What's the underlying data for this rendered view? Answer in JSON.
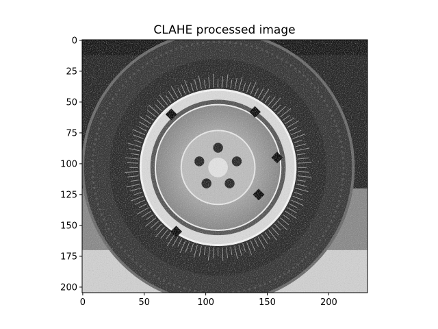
{
  "chart_data": {
    "type": "image",
    "title": "CLAHE processed image",
    "xlabel": "",
    "ylabel": "",
    "image_width": 232,
    "image_height": 205,
    "colormap": "gray",
    "xlim": [
      -0.5,
      231.5
    ],
    "ylim": [
      204.5,
      -0.5
    ],
    "x_ticks": [
      0,
      50,
      100,
      150,
      200
    ],
    "y_ticks": [
      0,
      25,
      50,
      75,
      100,
      125,
      150,
      175,
      200
    ],
    "grid": false,
    "subject": {
      "tire_center": [
        110,
        103
      ],
      "tire_outer_radius": 110,
      "rim_outer_radius": 63,
      "hub_radius": 30,
      "lug_nut_count": 5
    }
  }
}
